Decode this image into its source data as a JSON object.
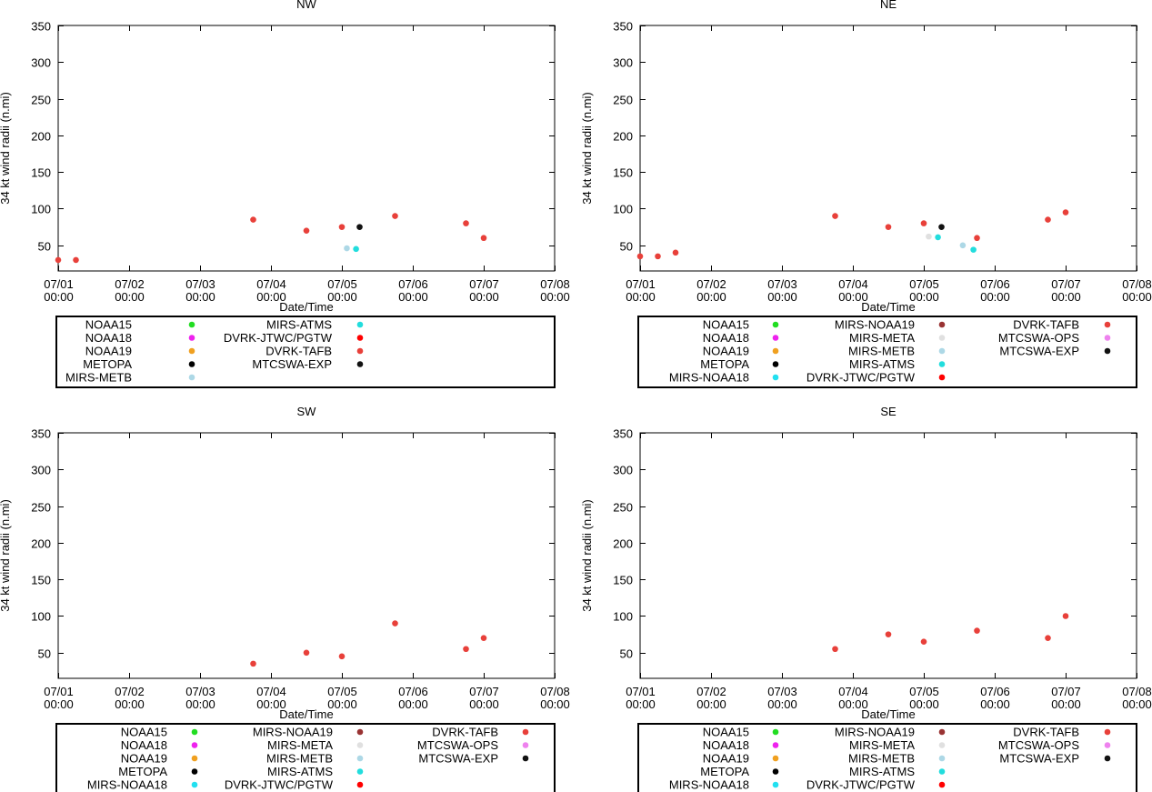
{
  "legend_symbols": {
    "NOAA15": "#22dd22",
    "NOAA18": "#ee22ee",
    "NOAA19": "#f0a020",
    "METOPA": "#000000",
    "MIRS-NOAA18": "#22e0f0",
    "MIRS-NOAA19": "#993333",
    "MIRS-META": "#e0e0e0",
    "MIRS-METB": "#add8e6",
    "MIRS-ATMS": "#22dddd",
    "DVRK-JTWC/PGTW": "#ff0000",
    "DVRK-TAFB": "#e8403a",
    "MTCSWA-OPS": "#ee82ee",
    "MTCSWA-EXP": "#111111"
  },
  "chart_data": [
    {
      "type": "scatter",
      "title": "NW",
      "xlabel": "Date/Time",
      "ylabel": "34 kt wind radii (n.mi)",
      "xlim": [
        0,
        7
      ],
      "ylim": [
        15,
        350
      ],
      "xticks": [
        {
          "v": 0,
          "d": "07/01",
          "t": "00:00"
        },
        {
          "v": 1,
          "d": "07/02",
          "t": "00:00"
        },
        {
          "v": 2,
          "d": "07/03",
          "t": "00:00"
        },
        {
          "v": 3,
          "d": "07/04",
          "t": "00:00"
        },
        {
          "v": 4,
          "d": "07/05",
          "t": "00:00"
        },
        {
          "v": 5,
          "d": "07/06",
          "t": "00:00"
        },
        {
          "v": 6,
          "d": "07/07",
          "t": "00:00"
        },
        {
          "v": 7,
          "d": "07/08",
          "t": "00:00"
        }
      ],
      "yticks": [
        50,
        100,
        150,
        200,
        250,
        300,
        350
      ],
      "series": [
        {
          "name": "DVRK-TAFB",
          "points": [
            [
              0,
              30
            ],
            [
              0.25,
              30
            ],
            [
              2.75,
              85
            ],
            [
              3.5,
              70
            ],
            [
              4,
              75
            ],
            [
              4.75,
              90
            ],
            [
              5.75,
              80
            ],
            [
              6,
              60
            ]
          ]
        },
        {
          "name": "MIRS-METB",
          "points": [
            [
              4.07,
              46
            ]
          ]
        },
        {
          "name": "MIRS-ATMS",
          "points": [
            [
              4.2,
              45
            ]
          ]
        },
        {
          "name": "MTCSWA-EXP",
          "points": [
            [
              4.25,
              75
            ]
          ]
        }
      ],
      "legend_columns": [
        [
          "NOAA15",
          "NOAA18",
          "NOAA19",
          "METOPA",
          "MIRS-METB"
        ],
        [
          "MIRS-ATMS",
          "DVRK-JTWC/PGTW",
          "DVRK-TAFB",
          "MTCSWA-EXP"
        ]
      ]
    },
    {
      "type": "scatter",
      "title": "NE",
      "xlabel": "Date/Time",
      "ylabel": "34 kt wind radii (n.mi)",
      "xlim": [
        0,
        7
      ],
      "ylim": [
        15,
        350
      ],
      "xticks": [
        {
          "v": 0,
          "d": "07/01",
          "t": "00:00"
        },
        {
          "v": 1,
          "d": "07/02",
          "t": "00:00"
        },
        {
          "v": 2,
          "d": "07/03",
          "t": "00:00"
        },
        {
          "v": 3,
          "d": "07/04",
          "t": "00:00"
        },
        {
          "v": 4,
          "d": "07/05",
          "t": "00:00"
        },
        {
          "v": 5,
          "d": "07/06",
          "t": "00:00"
        },
        {
          "v": 6,
          "d": "07/07",
          "t": "00:00"
        },
        {
          "v": 7,
          "d": "07/08",
          "t": "00:00"
        }
      ],
      "yticks": [
        50,
        100,
        150,
        200,
        250,
        300,
        350
      ],
      "series": [
        {
          "name": "DVRK-TAFB",
          "points": [
            [
              0,
              35
            ],
            [
              0.25,
              35
            ],
            [
              0.5,
              40
            ],
            [
              2.75,
              90
            ],
            [
              3.5,
              75
            ],
            [
              4,
              80
            ],
            [
              4.75,
              60
            ],
            [
              5.75,
              85
            ],
            [
              6,
              95
            ]
          ]
        },
        {
          "name": "MIRS-META",
          "points": [
            [
              4.07,
              62
            ]
          ]
        },
        {
          "name": "MIRS-METB",
          "points": [
            [
              4.55,
              50
            ]
          ]
        },
        {
          "name": "MIRS-ATMS",
          "points": [
            [
              4.2,
              61
            ],
            [
              4.7,
              44
            ]
          ]
        },
        {
          "name": "MTCSWA-EXP",
          "points": [
            [
              4.25,
              75
            ]
          ]
        }
      ],
      "legend_columns": [
        [
          "NOAA15",
          "NOAA18",
          "NOAA19",
          "METOPA",
          "MIRS-NOAA18"
        ],
        [
          "MIRS-NOAA19",
          "MIRS-META",
          "MIRS-METB",
          "MIRS-ATMS",
          "DVRK-JTWC/PGTW"
        ],
        [
          "DVRK-TAFB",
          "MTCSWA-OPS",
          "MTCSWA-EXP"
        ]
      ]
    },
    {
      "type": "scatter",
      "title": "SW",
      "xlabel": "Date/Time",
      "ylabel": "34 kt wind radii (n.mi)",
      "xlim": [
        0,
        7
      ],
      "ylim": [
        15,
        350
      ],
      "xticks": [
        {
          "v": 0,
          "d": "07/01",
          "t": "00:00"
        },
        {
          "v": 1,
          "d": "07/02",
          "t": "00:00"
        },
        {
          "v": 2,
          "d": "07/03",
          "t": "00:00"
        },
        {
          "v": 3,
          "d": "07/04",
          "t": "00:00"
        },
        {
          "v": 4,
          "d": "07/05",
          "t": "00:00"
        },
        {
          "v": 5,
          "d": "07/06",
          "t": "00:00"
        },
        {
          "v": 6,
          "d": "07/07",
          "t": "00:00"
        },
        {
          "v": 7,
          "d": "07/08",
          "t": "00:00"
        }
      ],
      "yticks": [
        50,
        100,
        150,
        200,
        250,
        300,
        350
      ],
      "series": [
        {
          "name": "DVRK-TAFB",
          "points": [
            [
              2.75,
              35
            ],
            [
              3.5,
              50
            ],
            [
              4,
              45
            ],
            [
              4.75,
              90
            ],
            [
              5.75,
              55
            ],
            [
              6,
              70
            ]
          ]
        }
      ],
      "legend_columns": [
        [
          "NOAA15",
          "NOAA18",
          "NOAA19",
          "METOPA",
          "MIRS-NOAA18"
        ],
        [
          "MIRS-NOAA19",
          "MIRS-META",
          "MIRS-METB",
          "MIRS-ATMS",
          "DVRK-JTWC/PGTW"
        ],
        [
          "DVRK-TAFB",
          "MTCSWA-OPS",
          "MTCSWA-EXP"
        ]
      ]
    },
    {
      "type": "scatter",
      "title": "SE",
      "xlabel": "Date/Time",
      "ylabel": "34 kt wind radii (n.mi)",
      "xlim": [
        0,
        7
      ],
      "ylim": [
        15,
        350
      ],
      "xticks": [
        {
          "v": 0,
          "d": "07/01",
          "t": "00:00"
        },
        {
          "v": 1,
          "d": "07/02",
          "t": "00:00"
        },
        {
          "v": 2,
          "d": "07/03",
          "t": "00:00"
        },
        {
          "v": 3,
          "d": "07/04",
          "t": "00:00"
        },
        {
          "v": 4,
          "d": "07/05",
          "t": "00:00"
        },
        {
          "v": 5,
          "d": "07/06",
          "t": "00:00"
        },
        {
          "v": 6,
          "d": "07/07",
          "t": "00:00"
        },
        {
          "v": 7,
          "d": "07/08",
          "t": "00:00"
        }
      ],
      "yticks": [
        50,
        100,
        150,
        200,
        250,
        300,
        350
      ],
      "series": [
        {
          "name": "DVRK-TAFB",
          "points": [
            [
              2.75,
              55
            ],
            [
              3.5,
              75
            ],
            [
              4,
              65
            ],
            [
              4.75,
              80
            ],
            [
              5.75,
              70
            ],
            [
              6,
              100
            ]
          ]
        }
      ],
      "legend_columns": [
        [
          "NOAA15",
          "NOAA18",
          "NOAA19",
          "METOPA",
          "MIRS-NOAA18"
        ],
        [
          "MIRS-NOAA19",
          "MIRS-META",
          "MIRS-METB",
          "MIRS-ATMS",
          "DVRK-JTWC/PGTW"
        ],
        [
          "DVRK-TAFB",
          "MTCSWA-OPS",
          "MTCSWA-EXP"
        ]
      ]
    }
  ]
}
